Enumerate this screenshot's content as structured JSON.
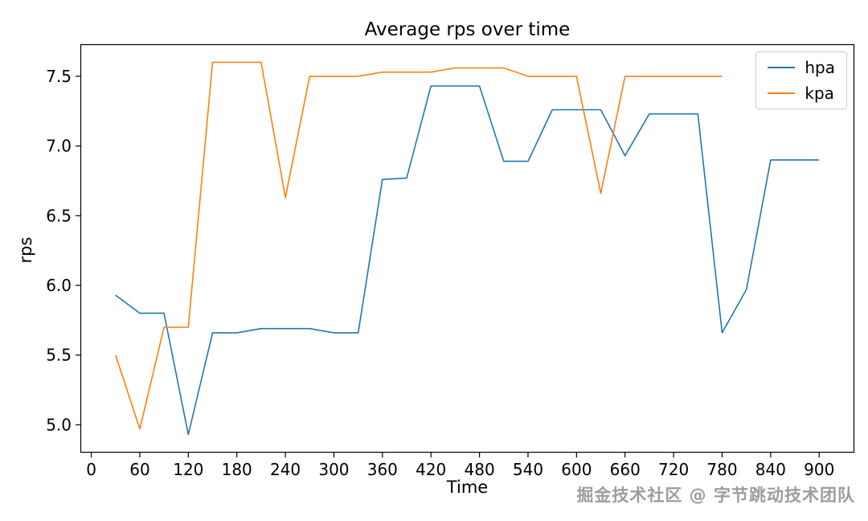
{
  "title": "Average rps over time",
  "watermark": "掘金技术社区 @ 字节跳动技术团队",
  "chart_data": {
    "type": "line",
    "title": "Average rps over time",
    "xlabel": "Time",
    "ylabel": "rps",
    "xlim": [
      -13.5,
      943.5
    ],
    "ylim": [
      4.8,
      7.73
    ],
    "x_ticks": [
      0,
      60,
      120,
      180,
      240,
      300,
      360,
      420,
      480,
      540,
      600,
      660,
      720,
      780,
      840,
      900
    ],
    "y_ticks": [
      5.0,
      5.5,
      6.0,
      6.5,
      7.0,
      7.5
    ],
    "grid": false,
    "legend_position": "upper right",
    "series": [
      {
        "name": "hpa",
        "color": "#1f77b4",
        "x": [
          30,
          60,
          90,
          120,
          150,
          180,
          210,
          240,
          270,
          300,
          330,
          360,
          390,
          420,
          450,
          480,
          510,
          540,
          570,
          600,
          630,
          660,
          690,
          720,
          750,
          780,
          810,
          840,
          870,
          900
        ],
        "y": [
          5.93,
          5.8,
          5.8,
          4.93,
          5.66,
          5.66,
          5.69,
          5.69,
          5.69,
          5.66,
          5.66,
          6.76,
          6.77,
          7.43,
          7.43,
          7.43,
          6.89,
          6.89,
          7.26,
          7.26,
          7.26,
          6.93,
          7.23,
          7.23,
          7.23,
          5.66,
          5.97,
          6.9,
          6.9,
          6.9
        ]
      },
      {
        "name": "kpa",
        "color": "#ff7f0e",
        "x": [
          30,
          60,
          90,
          120,
          150,
          180,
          210,
          240,
          270,
          300,
          330,
          360,
          390,
          420,
          450,
          480,
          510,
          540,
          570,
          600,
          630,
          660,
          690,
          720,
          750,
          780
        ],
        "y": [
          5.5,
          4.97,
          5.7,
          5.7,
          7.6,
          7.6,
          7.6,
          6.63,
          7.5,
          7.5,
          7.5,
          7.53,
          7.53,
          7.53,
          7.56,
          7.56,
          7.56,
          7.5,
          7.5,
          7.5,
          6.66,
          7.5,
          7.5,
          7.5,
          7.5,
          7.5
        ]
      }
    ]
  }
}
